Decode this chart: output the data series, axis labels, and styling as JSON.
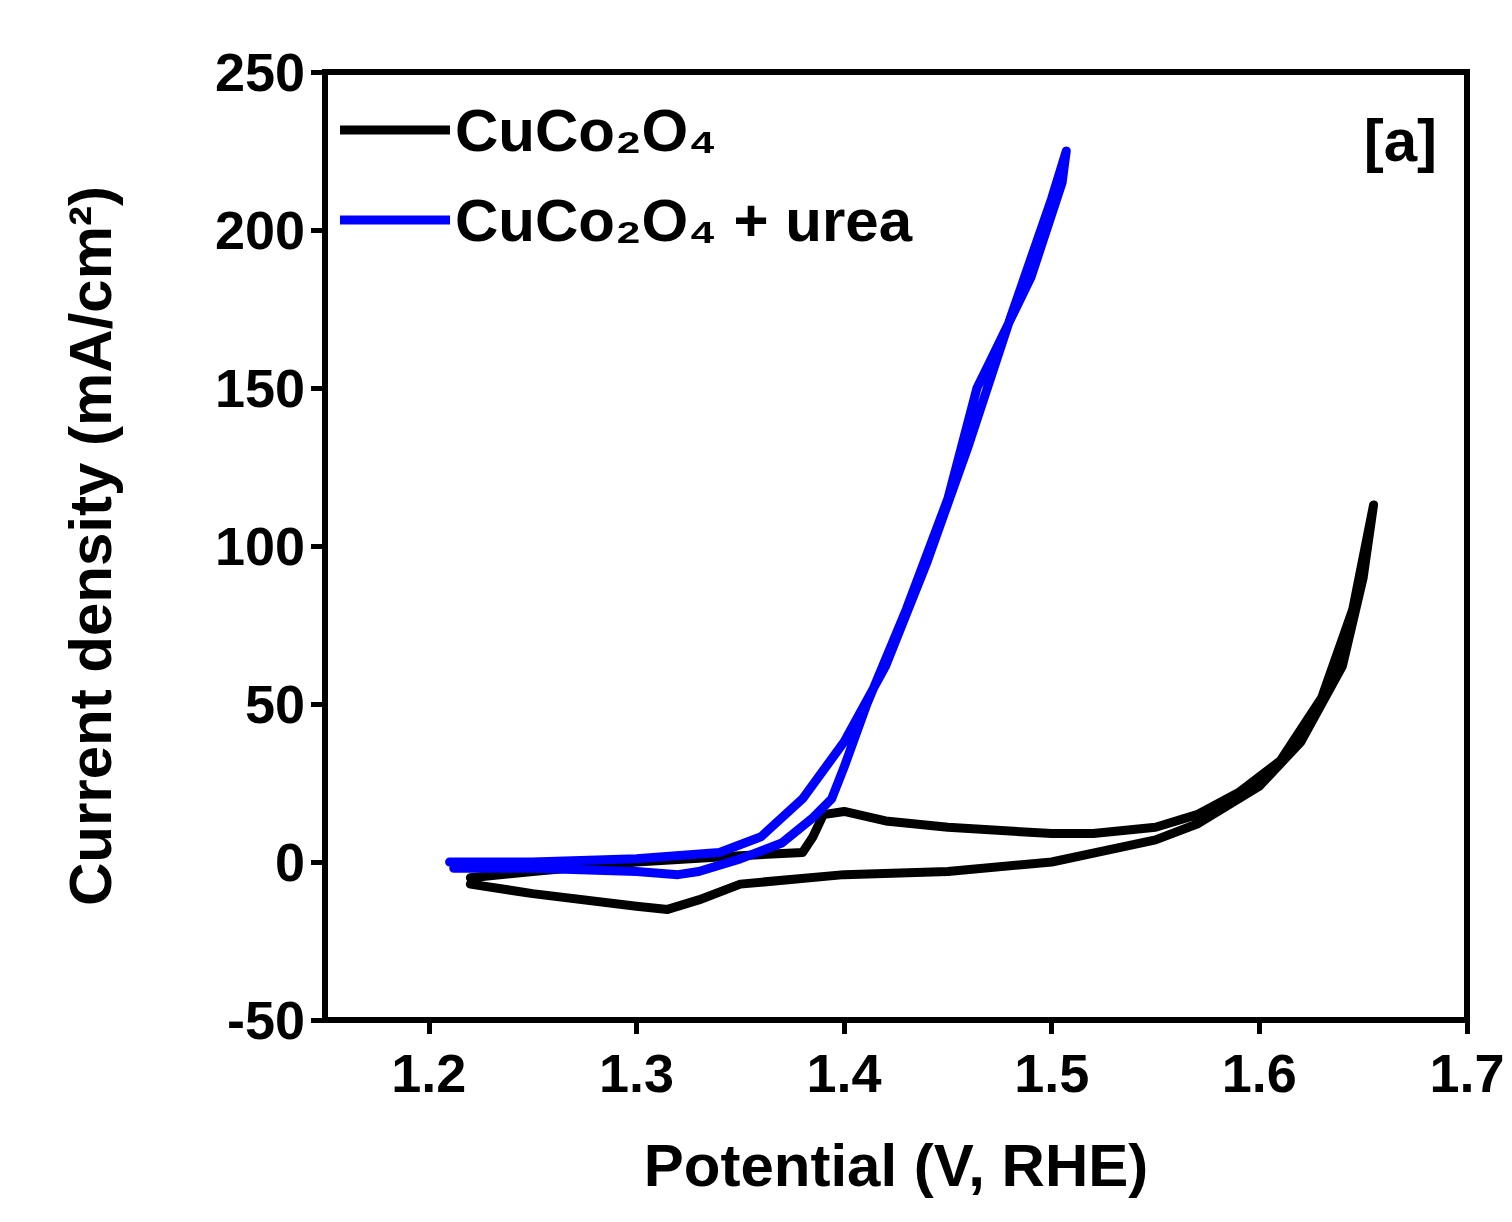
{
  "chart_data": {
    "type": "line",
    "xlabel": "Potential (V, RHE)",
    "ylabel": "Current density (mA/cm²)",
    "annotations": [
      "[a]"
    ],
    "xlim": [
      1.15,
      1.7
    ],
    "xticks": [
      1.2,
      1.3,
      1.4,
      1.5,
      1.6,
      1.7
    ],
    "ylim": [
      -50,
      250
    ],
    "yticks": [
      -50,
      0,
      50,
      100,
      150,
      200,
      250
    ],
    "grid": false,
    "legend": "top left",
    "marker": "none",
    "line_style": "solid",
    "series": [
      {
        "name": "CuCo₂O₄",
        "color": "#000000",
        "x": [
          1.22,
          1.25,
          1.3,
          1.35,
          1.38,
          1.385,
          1.39,
          1.4,
          1.42,
          1.45,
          1.5,
          1.52,
          1.55,
          1.57,
          1.59,
          1.61,
          1.63,
          1.645,
          1.655,
          1.65,
          1.64,
          1.62,
          1.6,
          1.57,
          1.55,
          1.5,
          1.45,
          1.4,
          1.35,
          1.33,
          1.315,
          1.3,
          1.25,
          1.22
        ],
        "values": [
          -5,
          -3,
          0,
          2,
          3,
          8,
          15,
          16,
          13,
          11,
          9,
          9,
          11,
          15,
          22,
          32,
          52,
          80,
          113,
          90,
          62,
          38,
          24,
          12,
          7,
          0,
          -3,
          -4,
          -7,
          -12,
          -15,
          -14,
          -10,
          -7
        ]
      },
      {
        "name": "CuCo₂O₄ + urea",
        "color": "#0000ff",
        "x": [
          1.21,
          1.25,
          1.3,
          1.34,
          1.36,
          1.38,
          1.4,
          1.42,
          1.44,
          1.46,
          1.48,
          1.5,
          1.507,
          1.505,
          1.49,
          1.47,
          1.464,
          1.45,
          1.43,
          1.411,
          1.4,
          1.394,
          1.385,
          1.37,
          1.35,
          1.33,
          1.32,
          1.3,
          1.25,
          1.212
        ],
        "values": [
          0,
          0,
          1,
          3,
          8,
          20,
          38,
          62,
          95,
          132,
          172,
          210,
          225,
          215,
          185,
          158,
          150,
          115,
          80,
          50,
          30,
          20,
          14,
          6,
          1,
          -3,
          -4,
          -3,
          -2,
          -2
        ]
      }
    ]
  }
}
